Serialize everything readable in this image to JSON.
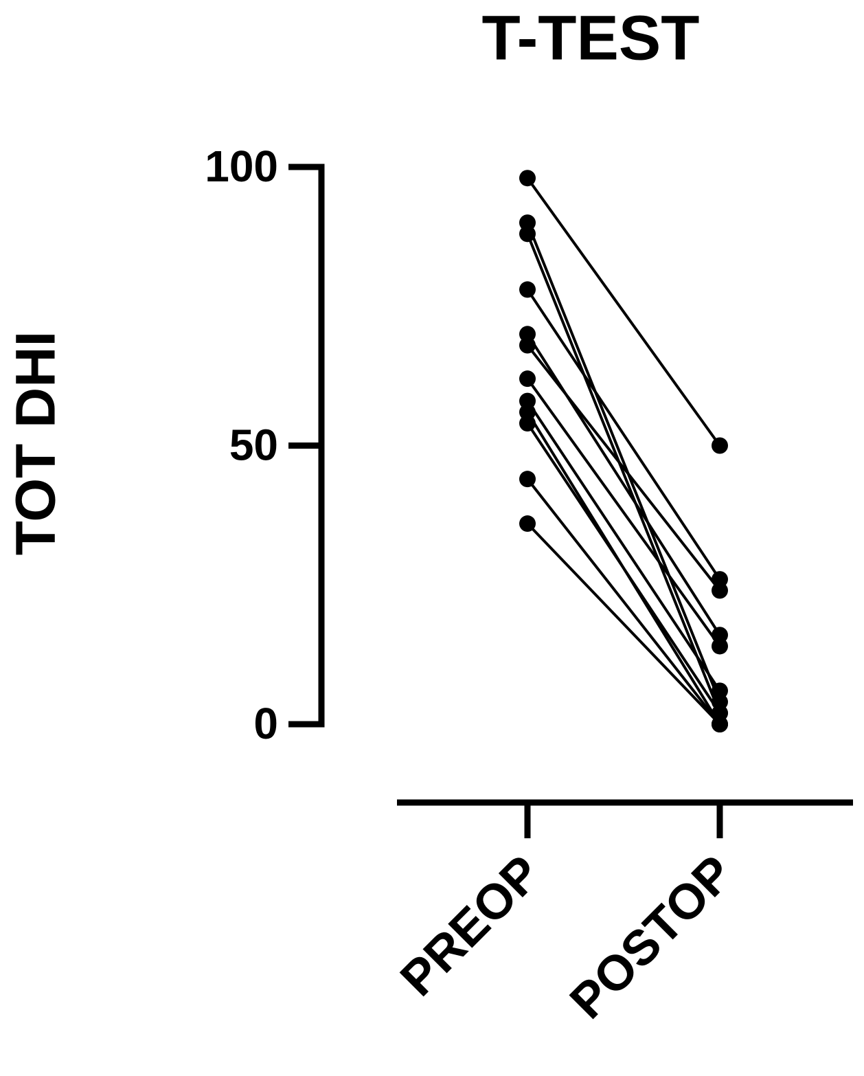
{
  "chart_data": {
    "type": "paired-line",
    "title": "T-TEST",
    "y_label": "TOT DHI",
    "categories": [
      "PREOP",
      "POSTOP"
    ],
    "color": "#000000",
    "ylim": [
      0,
      100
    ],
    "yticks": [
      0,
      50,
      100
    ],
    "series": [
      {
        "values": [
          98,
          50
        ]
      },
      {
        "values": [
          90,
          4
        ]
      },
      {
        "values": [
          88,
          2
        ]
      },
      {
        "values": [
          78,
          26
        ]
      },
      {
        "values": [
          70,
          16
        ]
      },
      {
        "values": [
          68,
          24
        ]
      },
      {
        "values": [
          62,
          14
        ]
      },
      {
        "values": [
          58,
          6
        ]
      },
      {
        "values": [
          56,
          0
        ]
      },
      {
        "values": [
          54,
          2
        ]
      },
      {
        "values": [
          44,
          0
        ]
      },
      {
        "values": [
          36,
          0
        ]
      }
    ]
  }
}
